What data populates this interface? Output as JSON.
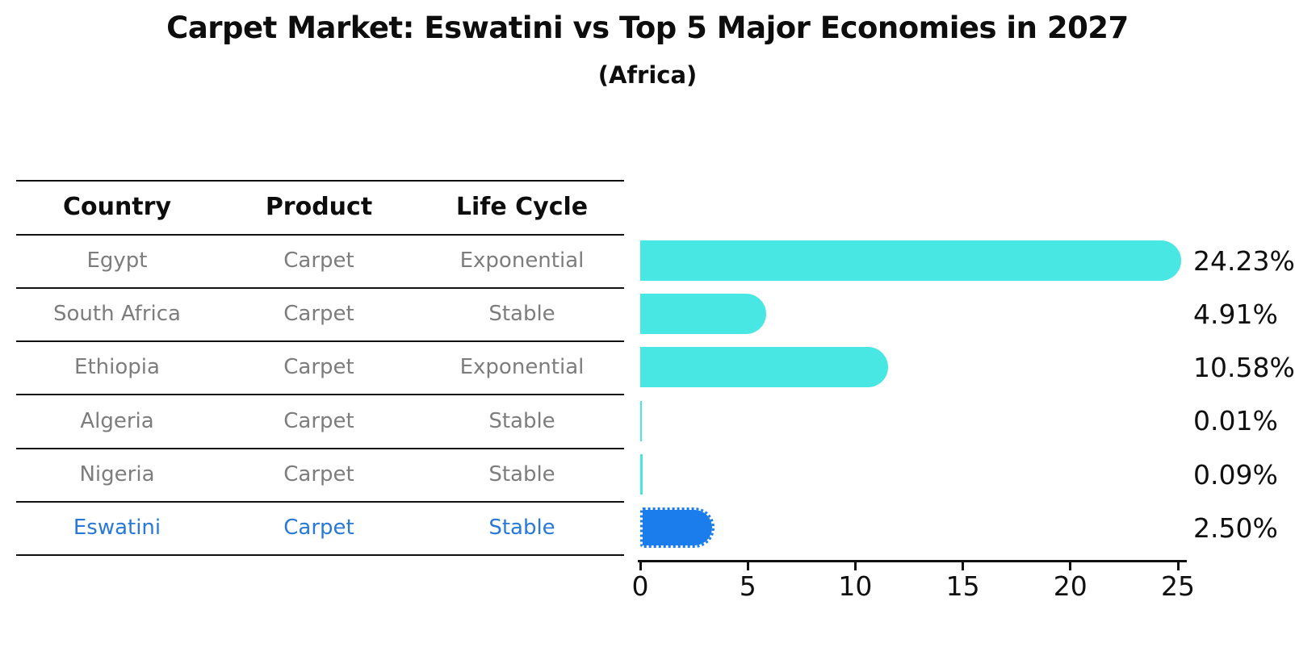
{
  "title": "Carpet Market: Eswatini vs Top 5 Major Economies in 2027",
  "subtitle": "(Africa)",
  "table": {
    "headers": [
      "Country",
      "Product",
      "Life Cycle"
    ],
    "rows": [
      {
        "country": "Egypt",
        "product": "Carpet",
        "life_cycle": "Exponential",
        "highlight": false
      },
      {
        "country": "South Africa",
        "product": "Carpet",
        "life_cycle": "Stable",
        "highlight": false
      },
      {
        "country": "Ethiopia",
        "product": "Carpet",
        "life_cycle": "Exponential",
        "highlight": false
      },
      {
        "country": "Algeria",
        "product": "Carpet",
        "life_cycle": "Stable",
        "highlight": false
      },
      {
        "country": "Nigeria",
        "product": "Carpet",
        "life_cycle": "Stable",
        "highlight": false
      },
      {
        "country": "Eswatini",
        "product": "Carpet",
        "life_cycle": "Stable",
        "highlight": true
      }
    ]
  },
  "chart_data": {
    "type": "bar",
    "orientation": "horizontal",
    "title": "Carpet Market: Eswatini vs Top 5 Major Economies in 2027",
    "subtitle": "(Africa)",
    "categories": [
      "Egypt",
      "South Africa",
      "Ethiopia",
      "Algeria",
      "Nigeria",
      "Eswatini"
    ],
    "values": [
      24.23,
      4.91,
      10.58,
      0.01,
      0.09,
      2.5
    ],
    "value_labels": [
      "24.23%",
      "4.91%",
      "10.58%",
      "0.01%",
      "0.09%",
      "2.50%"
    ],
    "x_ticks": [
      "0",
      "5",
      "10",
      "15",
      "20",
      "25"
    ],
    "x_tick_values": [
      0,
      5,
      10,
      15,
      20,
      25
    ],
    "xlim": [
      0,
      25
    ],
    "grid": false,
    "legend": "none",
    "highlight_index": 5,
    "highlight_style": "dotted-border-rounded",
    "colors": {
      "bar_default": "#48e7e4",
      "bar_highlight": "#1b7ceb",
      "highlight_text": "#2879d8",
      "table_text": "#7d7d7d",
      "header_text": "#0d0d0d",
      "axis": "#111111"
    }
  }
}
